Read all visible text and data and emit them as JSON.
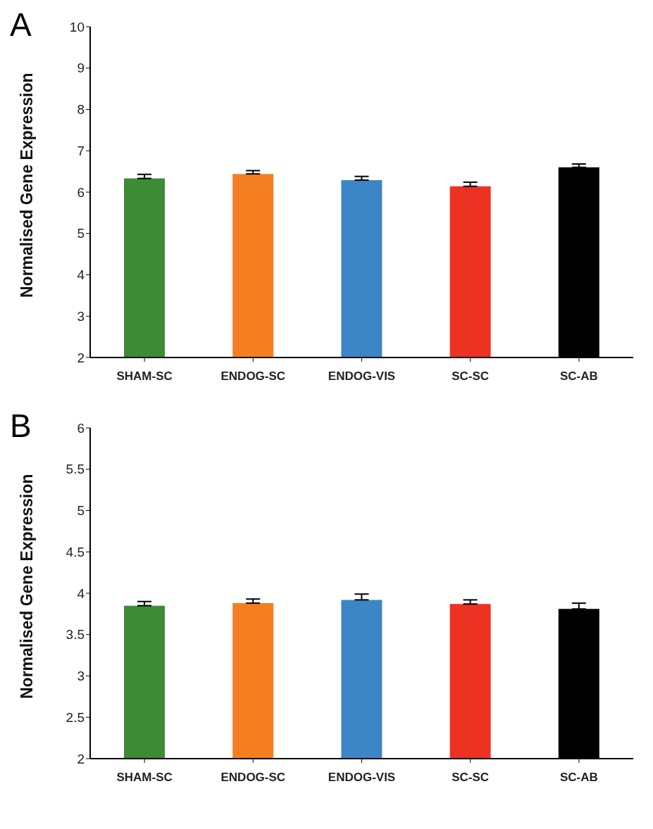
{
  "chart_data": [
    {
      "type": "bar",
      "title": "A",
      "ylabel": "Normalised Gene Expression",
      "categories": [
        "SHAM-SC",
        "ENDOG-SC",
        "ENDOG-VIS",
        "SC-SC",
        "SC-AB"
      ],
      "values": [
        6.33,
        6.44,
        6.29,
        6.14,
        6.6
      ],
      "colors": [
        "#3e8b36",
        "#f57f20",
        "#3d86c6",
        "#ec3223",
        "#000000"
      ],
      "errors": [
        0.1,
        0.08,
        0.09,
        0.1,
        0.08
      ],
      "ylim": [
        2,
        10
      ],
      "yticks": [
        2,
        3,
        4,
        5,
        6,
        7,
        8,
        9,
        10
      ],
      "grid": false,
      "legend": false
    },
    {
      "type": "bar",
      "title": "B",
      "ylabel": "Normalised Gene Expression",
      "categories": [
        "SHAM-SC",
        "ENDOG-SC",
        "ENDOG-VIS",
        "SC-SC",
        "SC-AB"
      ],
      "values": [
        3.85,
        3.88,
        3.92,
        3.87,
        3.81
      ],
      "colors": [
        "#3e8b36",
        "#f57f20",
        "#3d86c6",
        "#ec3223",
        "#000000"
      ],
      "errors": [
        0.05,
        0.05,
        0.07,
        0.05,
        0.07
      ],
      "ylim": [
        2,
        6
      ],
      "yticks": [
        2,
        2.5,
        3,
        3.5,
        4,
        4.5,
        5,
        5.5,
        6
      ],
      "grid": false,
      "legend": false
    }
  ]
}
